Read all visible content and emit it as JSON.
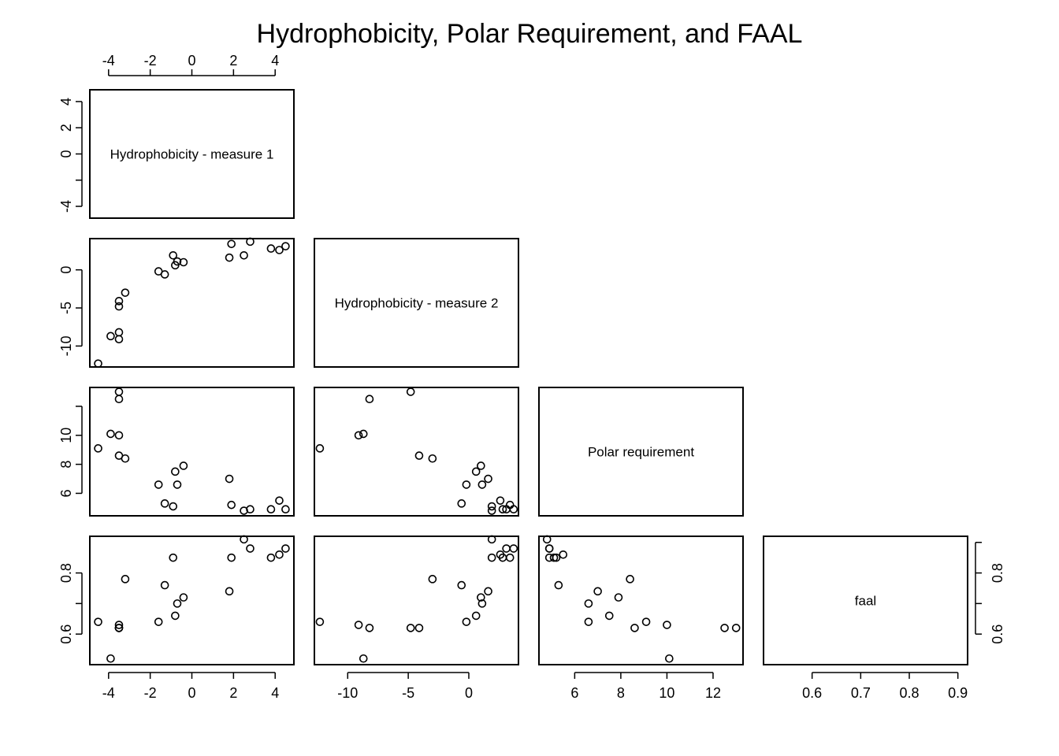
{
  "chart_data": {
    "type": "scatter",
    "layout": "pairs-lower-triangle",
    "title": "Hydrophobicity, Polar Requirement, and FAAL",
    "variables": [
      {
        "key": "h1",
        "label": "Hydrophobicity - measure 1",
        "range": [
          -4.9,
          4.9
        ],
        "ticks": [
          -4,
          -2,
          0,
          2,
          4
        ],
        "ticks_left": [
          -4,
          -2,
          0,
          2,
          4
        ],
        "tick_labels_left": [
          "-4",
          "",
          "0",
          "2",
          "4"
        ]
      },
      {
        "key": "h2",
        "label": "Hydrophobicity - measure 2",
        "range": [
          -12.75,
          4.1
        ],
        "ticks": [
          -10,
          -5,
          0
        ],
        "ticks_left": [
          -10,
          -5,
          0
        ],
        "tick_labels_left": [
          "-10",
          "-5",
          "0"
        ]
      },
      {
        "key": "pr",
        "label": "Polar requirement",
        "range": [
          4.45,
          13.3
        ],
        "ticks": [
          6,
          8,
          10,
          12
        ],
        "ticks_left": [
          6,
          8,
          10,
          12
        ],
        "tick_labels_left": [
          "6",
          "8",
          "10",
          ""
        ]
      },
      {
        "key": "faal",
        "label": "faal",
        "range": [
          0.5,
          0.92
        ],
        "ticks": [
          0.6,
          0.7,
          0.8,
          0.9
        ],
        "ticks_left": [
          0.6,
          0.7,
          0.8
        ],
        "tick_labels_left": [
          "0.6",
          "",
          "0.8"
        ]
      }
    ],
    "points": [
      {
        "h1": -4.5,
        "h2": -12.3,
        "pr": 9.1,
        "faal": 0.64
      },
      {
        "h1": -3.9,
        "h2": -8.7,
        "pr": 10.1,
        "faal": 0.52
      },
      {
        "h1": -3.5,
        "h2": -9.1,
        "pr": 10.0,
        "faal": 0.63
      },
      {
        "h1": -3.5,
        "h2": -8.2,
        "pr": 12.5,
        "faal": 0.62
      },
      {
        "h1": -3.5,
        "h2": -4.8,
        "pr": 13.0,
        "faal": 0.62
      },
      {
        "h1": -3.5,
        "h2": -4.1,
        "pr": 8.6,
        "faal": 0.62
      },
      {
        "h1": -3.2,
        "h2": -3.0,
        "pr": 8.4,
        "faal": 0.78
      },
      {
        "h1": -1.6,
        "h2": -0.2,
        "pr": 6.6,
        "faal": 0.64
      },
      {
        "h1": -1.3,
        "h2": -0.6,
        "pr": 5.3,
        "faal": 0.76
      },
      {
        "h1": -0.9,
        "h2": 1.9,
        "pr": 5.1,
        "faal": 0.85
      },
      {
        "h1": -0.8,
        "h2": 0.6,
        "pr": 7.5,
        "faal": 0.66
      },
      {
        "h1": -0.7,
        "h2": 1.1,
        "pr": 6.6,
        "faal": 0.7
      },
      {
        "h1": -0.4,
        "h2": 1.0,
        "pr": 7.9,
        "faal": 0.72
      },
      {
        "h1": 1.8,
        "h2": 1.6,
        "pr": 7.0,
        "faal": 0.74
      },
      {
        "h1": 1.9,
        "h2": 3.4,
        "pr": 5.2,
        "faal": 0.85
      },
      {
        "h1": 2.5,
        "h2": 1.9,
        "pr": 4.8,
        "faal": 0.91
      },
      {
        "h1": 2.8,
        "h2": 3.7,
        "pr": 4.9,
        "faal": 0.88
      },
      {
        "h1": 3.8,
        "h2": 2.8,
        "pr": 4.9,
        "faal": 0.85
      },
      {
        "h1": 4.2,
        "h2": 2.6,
        "pr": 5.5,
        "faal": 0.86
      },
      {
        "h1": 4.5,
        "h2": 3.1,
        "pr": 4.9,
        "faal": 0.88
      }
    ],
    "grid": false,
    "legend": "none"
  }
}
